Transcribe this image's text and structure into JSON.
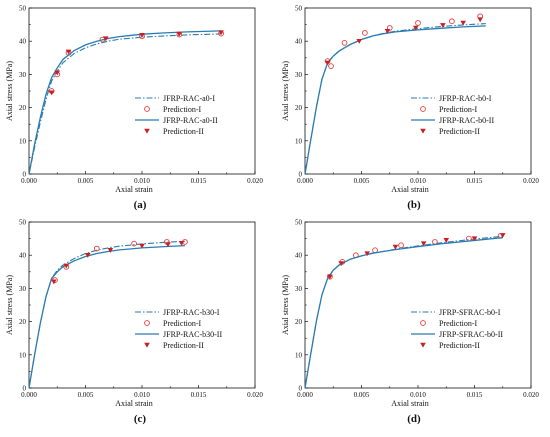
{
  "chart_data": [
    {
      "type": "line",
      "panel_label": "(a)",
      "xlabel": "Axial strain",
      "ylabel": "Axial stress (MPa)",
      "xlim": [
        0,
        0.02
      ],
      "ylim": [
        0,
        50
      ],
      "x_ticks": [
        "0.000",
        "0.005",
        "0.010",
        "0.015",
        "0.020"
      ],
      "y_ticks": [
        "0",
        "10",
        "20",
        "30",
        "40",
        "50"
      ],
      "legend_position": "center-right",
      "series": [
        {
          "name": "JFRP-RAC-a0-I",
          "style": "dashdot",
          "color": "#2b7bb0",
          "points": [
            [
              0,
              0
            ],
            [
              0.0005,
              8
            ],
            [
              0.001,
              15.5
            ],
            [
              0.0015,
              22.5
            ],
            [
              0.002,
              28
            ],
            [
              0.0025,
              31
            ],
            [
              0.003,
              33.5
            ],
            [
              0.004,
              36.3
            ],
            [
              0.005,
              38
            ],
            [
              0.006,
              39.2
            ],
            [
              0.007,
              40
            ],
            [
              0.008,
              40.6
            ],
            [
              0.01,
              41.2
            ],
            [
              0.012,
              41.6
            ],
            [
              0.014,
              41.9
            ],
            [
              0.017,
              42.2
            ]
          ]
        },
        {
          "name": "Prediction-I",
          "marker": "circle-open",
          "color": "#e83b3b",
          "points": [
            [
              0.002,
              25
            ],
            [
              0.0025,
              30
            ],
            [
              0.0035,
              36.5
            ],
            [
              0.0065,
              40.5
            ],
            [
              0.01,
              41.5
            ],
            [
              0.0133,
              42
            ],
            [
              0.017,
              42.3
            ]
          ]
        },
        {
          "name": "JFRP-RAC-a0-II",
          "style": "solid",
          "color": "#2b7bb0",
          "points": [
            [
              0,
              0
            ],
            [
              0.0005,
              9
            ],
            [
              0.001,
              17
            ],
            [
              0.0015,
              24
            ],
            [
              0.002,
              29
            ],
            [
              0.0025,
              32
            ],
            [
              0.003,
              34.5
            ],
            [
              0.004,
              37.2
            ],
            [
              0.005,
              38.9
            ],
            [
              0.006,
              40
            ],
            [
              0.007,
              40.8
            ],
            [
              0.008,
              41.4
            ],
            [
              0.01,
              42.1
            ],
            [
              0.012,
              42.5
            ],
            [
              0.014,
              42.8
            ],
            [
              0.017,
              43.1
            ]
          ]
        },
        {
          "name": "Prediction-II",
          "marker": "triangle-down",
          "color": "#cc1f1f",
          "points": [
            [
              0.002,
              24.5
            ],
            [
              0.0025,
              30.5
            ],
            [
              0.0035,
              36.8
            ],
            [
              0.0068,
              40.8
            ],
            [
              0.01,
              41.8
            ],
            [
              0.0133,
              42.2
            ],
            [
              0.017,
              42.6
            ]
          ]
        }
      ]
    },
    {
      "type": "line",
      "panel_label": "(b)",
      "xlabel": "Axial strain",
      "ylabel": "Axial stress (MPa)",
      "xlim": [
        0,
        0.02
      ],
      "ylim": [
        0,
        50
      ],
      "x_ticks": [
        "0.000",
        "0.005",
        "0.010",
        "0.015",
        "0.020"
      ],
      "y_ticks": [
        "0",
        "10",
        "20",
        "30",
        "40",
        "50"
      ],
      "legend_position": "center-right",
      "series": [
        {
          "name": "JFRP-RAC-b0-I",
          "style": "dashdot",
          "color": "#2b7bb0",
          "points": [
            [
              0,
              0
            ],
            [
              0.0005,
              10
            ],
            [
              0.001,
              20
            ],
            [
              0.0015,
              28.5
            ],
            [
              0.002,
              33.5
            ],
            [
              0.0025,
              35.5
            ],
            [
              0.003,
              37
            ],
            [
              0.004,
              39
            ],
            [
              0.005,
              40.5
            ],
            [
              0.006,
              41.6
            ],
            [
              0.007,
              42.4
            ],
            [
              0.008,
              43
            ],
            [
              0.01,
              43.8
            ],
            [
              0.012,
              44.4
            ],
            [
              0.014,
              44.9
            ],
            [
              0.016,
              45.3
            ]
          ]
        },
        {
          "name": "Prediction-I",
          "marker": "circle-open",
          "color": "#e83b3b",
          "points": [
            [
              0.002,
              34
            ],
            [
              0.0023,
              32.5
            ],
            [
              0.0035,
              39.5
            ],
            [
              0.0053,
              42.5
            ],
            [
              0.0075,
              44
            ],
            [
              0.01,
              45.5
            ],
            [
              0.013,
              46
            ],
            [
              0.0155,
              47.5
            ]
          ]
        },
        {
          "name": "JFRP-RAC-b0-II",
          "style": "solid",
          "color": "#2b7bb0",
          "points": [
            [
              0,
              0
            ],
            [
              0.0005,
              10
            ],
            [
              0.001,
              20
            ],
            [
              0.0015,
              28.5
            ],
            [
              0.002,
              33.5
            ],
            [
              0.0025,
              35.5
            ],
            [
              0.003,
              37
            ],
            [
              0.004,
              39
            ],
            [
              0.005,
              40.5
            ],
            [
              0.006,
              41.6
            ],
            [
              0.007,
              42.3
            ],
            [
              0.008,
              42.8
            ],
            [
              0.01,
              43.4
            ],
            [
              0.012,
              43.9
            ],
            [
              0.014,
              44.3
            ],
            [
              0.016,
              44.6
            ]
          ]
        },
        {
          "name": "Prediction-II",
          "marker": "triangle-down",
          "color": "#cc1f1f",
          "points": [
            [
              0.002,
              33.5
            ],
            [
              0.0048,
              40
            ],
            [
              0.0073,
              43
            ],
            [
              0.0098,
              44
            ],
            [
              0.0122,
              44.8
            ],
            [
              0.014,
              45.5
            ],
            [
              0.0155,
              46.5
            ]
          ]
        }
      ]
    },
    {
      "type": "line",
      "panel_label": "(c)",
      "xlabel": "Axial strain",
      "ylabel": "Axial stress (MPa)",
      "xlim": [
        0,
        0.02
      ],
      "ylim": [
        0,
        50
      ],
      "x_ticks": [
        "0.000",
        "0.005",
        "0.010",
        "0.015",
        "0.020"
      ],
      "y_ticks": [
        "0",
        "10",
        "20",
        "30",
        "40",
        "50"
      ],
      "legend_position": "center-right",
      "series": [
        {
          "name": "JFRP-RAC-b30-I",
          "style": "dashdot",
          "color": "#2b7bb0",
          "points": [
            [
              0,
              0
            ],
            [
              0.0005,
              10
            ],
            [
              0.001,
              19.5
            ],
            [
              0.0015,
              27.5
            ],
            [
              0.002,
              33
            ],
            [
              0.0025,
              35.5
            ],
            [
              0.003,
              37
            ],
            [
              0.004,
              39
            ],
            [
              0.005,
              40.5
            ],
            [
              0.006,
              41.5
            ],
            [
              0.007,
              42.2
            ],
            [
              0.008,
              42.7
            ],
            [
              0.01,
              43.4
            ],
            [
              0.012,
              43.9
            ],
            [
              0.0138,
              44.2
            ]
          ]
        },
        {
          "name": "Prediction-I",
          "marker": "circle-open",
          "color": "#e83b3b",
          "points": [
            [
              0.0023,
              32.5
            ],
            [
              0.0033,
              36.5
            ],
            [
              0.006,
              42
            ],
            [
              0.0093,
              43.5
            ],
            [
              0.0122,
              44
            ],
            [
              0.0138,
              44
            ]
          ]
        },
        {
          "name": "JFRP-RAC-b30-II",
          "style": "solid",
          "color": "#2b7bb0",
          "points": [
            [
              0,
              0
            ],
            [
              0.0005,
              10
            ],
            [
              0.001,
              19.5
            ],
            [
              0.0015,
              27.5
            ],
            [
              0.002,
              33
            ],
            [
              0.0025,
              35
            ],
            [
              0.003,
              36.5
            ],
            [
              0.004,
              38.3
            ],
            [
              0.005,
              39.6
            ],
            [
              0.006,
              40.5
            ],
            [
              0.007,
              41.1
            ],
            [
              0.008,
              41.6
            ],
            [
              0.01,
              42.2
            ],
            [
              0.012,
              42.6
            ],
            [
              0.0138,
              42.9
            ]
          ]
        },
        {
          "name": "Prediction-II",
          "marker": "triangle-down",
          "color": "#cc1f1f",
          "points": [
            [
              0.0022,
              32
            ],
            [
              0.0033,
              36.8
            ],
            [
              0.0052,
              40
            ],
            [
              0.0072,
              41.5
            ],
            [
              0.01,
              42.8
            ],
            [
              0.0123,
              43.2
            ],
            [
              0.0135,
              43.6
            ]
          ]
        }
      ]
    },
    {
      "type": "line",
      "panel_label": "(d)",
      "xlabel": "Axial strain",
      "ylabel": "Axial stress (MPa)",
      "xlim": [
        0,
        0.02
      ],
      "ylim": [
        0,
        50
      ],
      "x_ticks": [
        "0.000",
        "0.005",
        "0.010",
        "0.015",
        "0.020"
      ],
      "y_ticks": [
        "0",
        "10",
        "20",
        "30",
        "40",
        "50"
      ],
      "legend_position": "center-right",
      "series": [
        {
          "name": "JFRP-SFRAC-b0-I",
          "style": "dashdot",
          "color": "#2b7bb0",
          "points": [
            [
              0,
              0
            ],
            [
              0.0005,
              10
            ],
            [
              0.001,
              20
            ],
            [
              0.0015,
              28
            ],
            [
              0.002,
              33
            ],
            [
              0.0025,
              35.5
            ],
            [
              0.003,
              37
            ],
            [
              0.004,
              38.8
            ],
            [
              0.005,
              39.8
            ],
            [
              0.006,
              40.6
            ],
            [
              0.008,
              41.8
            ],
            [
              0.01,
              42.8
            ],
            [
              0.012,
              43.7
            ],
            [
              0.014,
              44.5
            ],
            [
              0.016,
              45.2
            ],
            [
              0.0175,
              45.7
            ]
          ]
        },
        {
          "name": "Prediction-I",
          "marker": "circle-open",
          "color": "#e83b3b",
          "points": [
            [
              0.0022,
              33.5
            ],
            [
              0.0033,
              38
            ],
            [
              0.0045,
              40
            ],
            [
              0.0062,
              41.5
            ],
            [
              0.0085,
              43
            ],
            [
              0.0115,
              44
            ],
            [
              0.0145,
              45
            ],
            [
              0.0173,
              45.8
            ]
          ]
        },
        {
          "name": "JFRP-SFRAC-b0-II",
          "style": "solid",
          "color": "#2b7bb0",
          "points": [
            [
              0,
              0
            ],
            [
              0.0005,
              10
            ],
            [
              0.001,
              20
            ],
            [
              0.0015,
              28
            ],
            [
              0.002,
              33
            ],
            [
              0.0025,
              35.5
            ],
            [
              0.003,
              37
            ],
            [
              0.004,
              38.8
            ],
            [
              0.005,
              39.8
            ],
            [
              0.006,
              40.6
            ],
            [
              0.008,
              41.7
            ],
            [
              0.01,
              42.6
            ],
            [
              0.012,
              43.4
            ],
            [
              0.014,
              44.1
            ],
            [
              0.016,
              44.8
            ],
            [
              0.0175,
              45.3
            ]
          ]
        },
        {
          "name": "Prediction-II",
          "marker": "triangle-down",
          "color": "#cc1f1f",
          "points": [
            [
              0.0022,
              33.5
            ],
            [
              0.0032,
              37.5
            ],
            [
              0.0055,
              40.5
            ],
            [
              0.008,
              42.5
            ],
            [
              0.0105,
              43.5
            ],
            [
              0.0125,
              44.5
            ],
            [
              0.015,
              45
            ],
            [
              0.0175,
              46
            ]
          ]
        }
      ]
    }
  ]
}
